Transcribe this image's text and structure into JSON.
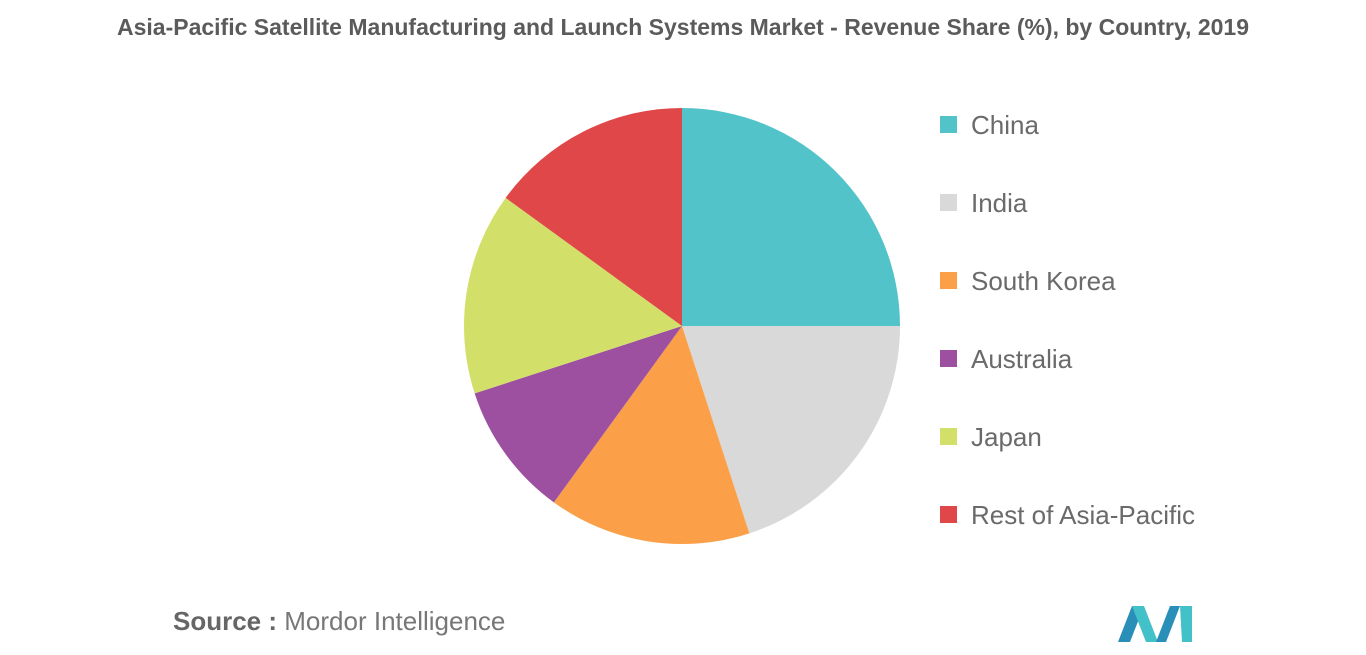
{
  "title": "Asia-Pacific Satellite Manufacturing and Launch Systems Market - Revenue Share (%), by Country, 2019",
  "chart_data": {
    "type": "pie",
    "title": "Asia-Pacific Satellite Manufacturing and Launch Systems Market - Revenue Share (%), by Country, 2019",
    "categories": [
      "China",
      "India",
      "South Korea",
      "Australia",
      "Japan",
      "Rest of Asia-Pacific"
    ],
    "values": [
      25,
      20,
      15,
      10,
      15,
      15
    ],
    "colors": [
      "#52c3c9",
      "#d9d9d9",
      "#fba048",
      "#9c509f",
      "#d2e06a",
      "#df4749"
    ],
    "start_angle": "12 o'clock",
    "direction": "clockwise",
    "legend_position": "right"
  },
  "source": {
    "label": "Source :",
    "text": "Mordor Intelligence"
  },
  "logo": {
    "icon": "mordor-intelligence-logo",
    "colors": [
      "#2a8fb8",
      "#43c1c9"
    ]
  }
}
